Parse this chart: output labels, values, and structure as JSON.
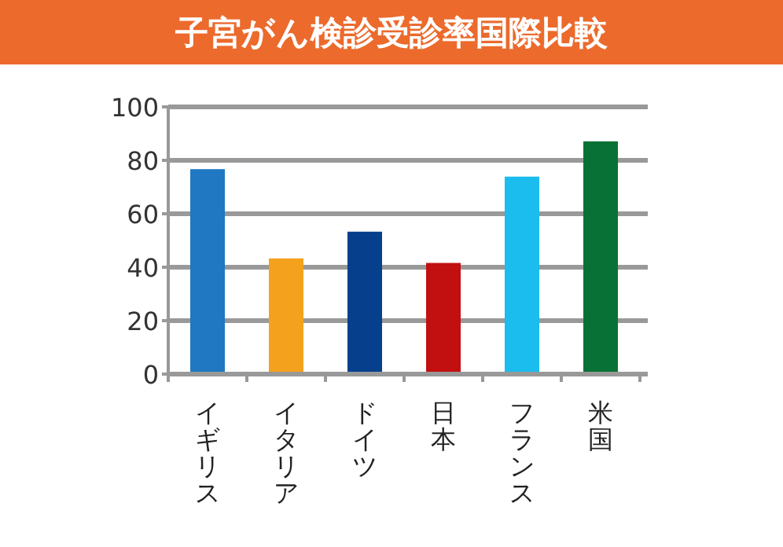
{
  "chart_data": {
    "type": "bar",
    "title": "子宮がん検診受診率国際比較",
    "categories": [
      "イギリス",
      "イタリア",
      "ドイツ",
      "日本",
      "フランス",
      "米国"
    ],
    "values": [
      76.7,
      43.3,
      53.3,
      41.6,
      73.9,
      87.1
    ],
    "colors": [
      "#1f78c1",
      "#f4a11d",
      "#06408c",
      "#c21010",
      "#1bbcee",
      "#087236"
    ],
    "ylim": [
      0,
      100
    ],
    "yticks": [
      0,
      20,
      40,
      60,
      80,
      100
    ],
    "grid": "y"
  }
}
